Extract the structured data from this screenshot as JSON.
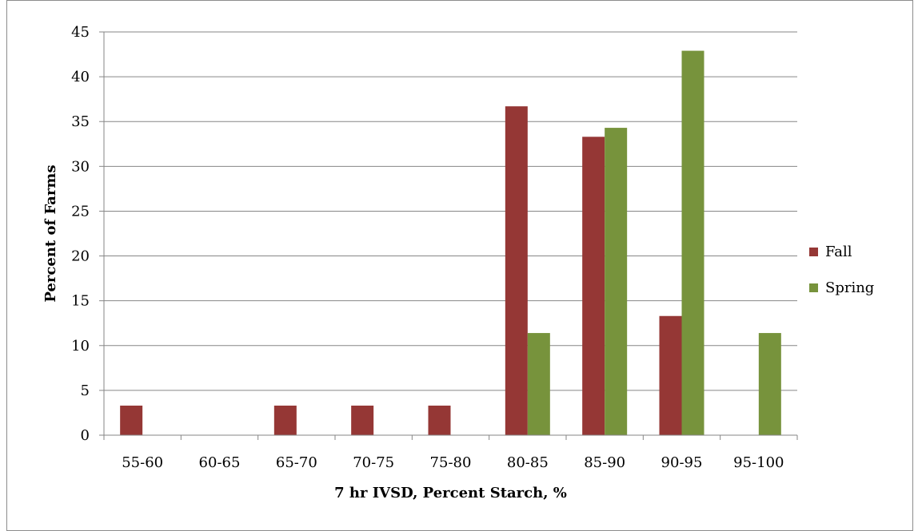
{
  "chart_data": {
    "type": "bar",
    "title": "",
    "xlabel": "7 hr IVSD, Percent Starch, %",
    "ylabel": "Percent of Farms",
    "ylim": [
      0,
      45
    ],
    "yticks": [
      "0",
      "5",
      "10",
      "15",
      "20",
      "25",
      "30",
      "35",
      "40",
      "45"
    ],
    "grid": true,
    "legend_position": "right",
    "categories": [
      "55-60",
      "60-65",
      "65-70",
      "70-75",
      "75-80",
      "80-85",
      "85-90",
      "90-95",
      "95-100"
    ],
    "series": [
      {
        "name": "Fall",
        "color": "#953735",
        "values": [
          3.3,
          0,
          3.3,
          3.3,
          3.3,
          36.7,
          33.3,
          13.3,
          0
        ]
      },
      {
        "name": "Spring",
        "color": "#77933C",
        "values": [
          0,
          0,
          0,
          0,
          0,
          11.4,
          34.3,
          42.9,
          11.4
        ]
      }
    ]
  }
}
